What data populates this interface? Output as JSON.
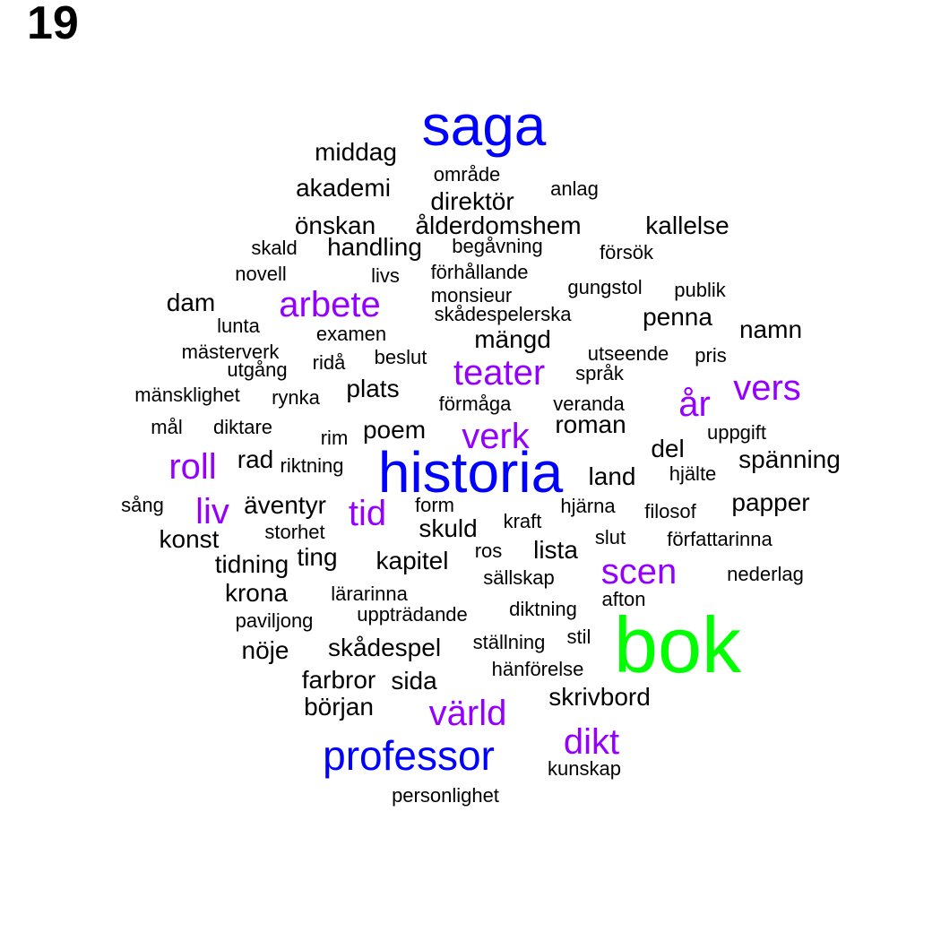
{
  "panel_label": "19",
  "palette": {
    "black": "#000000",
    "purple": "#9400ff",
    "blue": "#0000ff",
    "green": "#00ff00"
  },
  "words": [
    {
      "text": "saga",
      "color": "blue",
      "size_level": 4
    },
    {
      "text": "middag",
      "color": "black",
      "size_level": 1
    },
    {
      "text": "område",
      "color": "black",
      "size_level": 0
    },
    {
      "text": "akademi",
      "color": "black",
      "size_level": 1
    },
    {
      "text": "anlag",
      "color": "black",
      "size_level": 0
    },
    {
      "text": "direktör",
      "color": "black",
      "size_level": 1
    },
    {
      "text": "önskan",
      "color": "black",
      "size_level": 1
    },
    {
      "text": "ålderdomshem",
      "color": "black",
      "size_level": 1
    },
    {
      "text": "kallelse",
      "color": "black",
      "size_level": 1
    },
    {
      "text": "skald",
      "color": "black",
      "size_level": 0
    },
    {
      "text": "handling",
      "color": "black",
      "size_level": 1
    },
    {
      "text": "begåvning",
      "color": "black",
      "size_level": 0
    },
    {
      "text": "försök",
      "color": "black",
      "size_level": 0
    },
    {
      "text": "novell",
      "color": "black",
      "size_level": 0
    },
    {
      "text": "livs",
      "color": "black",
      "size_level": 0
    },
    {
      "text": "förhållande",
      "color": "black",
      "size_level": 0
    },
    {
      "text": "gungstol",
      "color": "black",
      "size_level": 0
    },
    {
      "text": "publik",
      "color": "black",
      "size_level": 0
    },
    {
      "text": "dam",
      "color": "black",
      "size_level": 1
    },
    {
      "text": "arbete",
      "color": "purple",
      "size_level": 2
    },
    {
      "text": "monsieur",
      "color": "black",
      "size_level": 0
    },
    {
      "text": "skådespelerska",
      "color": "black",
      "size_level": 0
    },
    {
      "text": "penna",
      "color": "black",
      "size_level": 1
    },
    {
      "text": "lunta",
      "color": "black",
      "size_level": 0
    },
    {
      "text": "namn",
      "color": "black",
      "size_level": 1
    },
    {
      "text": "examen",
      "color": "black",
      "size_level": 0
    },
    {
      "text": "mängd",
      "color": "black",
      "size_level": 1
    },
    {
      "text": "mästerverk",
      "color": "black",
      "size_level": 0
    },
    {
      "text": "beslut",
      "color": "black",
      "size_level": 0
    },
    {
      "text": "utseende",
      "color": "black",
      "size_level": 0
    },
    {
      "text": "pris",
      "color": "black",
      "size_level": 0
    },
    {
      "text": "utgång",
      "color": "black",
      "size_level": 0
    },
    {
      "text": "ridå",
      "color": "black",
      "size_level": 0
    },
    {
      "text": "teater",
      "color": "purple",
      "size_level": 2
    },
    {
      "text": "språk",
      "color": "black",
      "size_level": 0
    },
    {
      "text": "vers",
      "color": "purple",
      "size_level": 2
    },
    {
      "text": "mänsklighet",
      "color": "black",
      "size_level": 0
    },
    {
      "text": "rynka",
      "color": "black",
      "size_level": 0
    },
    {
      "text": "plats",
      "color": "black",
      "size_level": 1
    },
    {
      "text": "år",
      "color": "purple",
      "size_level": 2
    },
    {
      "text": "förmåga",
      "color": "black",
      "size_level": 0
    },
    {
      "text": "veranda",
      "color": "black",
      "size_level": 0
    },
    {
      "text": "mål",
      "color": "black",
      "size_level": 0
    },
    {
      "text": "diktare",
      "color": "black",
      "size_level": 0
    },
    {
      "text": "roman",
      "color": "black",
      "size_level": 1
    },
    {
      "text": "rim",
      "color": "black",
      "size_level": 0
    },
    {
      "text": "poem",
      "color": "black",
      "size_level": 1
    },
    {
      "text": "verk",
      "color": "purple",
      "size_level": 2
    },
    {
      "text": "uppgift",
      "color": "black",
      "size_level": 0
    },
    {
      "text": "del",
      "color": "black",
      "size_level": 1
    },
    {
      "text": "roll",
      "color": "purple",
      "size_level": 2
    },
    {
      "text": "rad",
      "color": "black",
      "size_level": 1
    },
    {
      "text": "riktning",
      "color": "black",
      "size_level": 0
    },
    {
      "text": "historia",
      "color": "blue",
      "size_level": 4
    },
    {
      "text": "spänning",
      "color": "black",
      "size_level": 1
    },
    {
      "text": "land",
      "color": "black",
      "size_level": 1
    },
    {
      "text": "hjälte",
      "color": "black",
      "size_level": 0
    },
    {
      "text": "sång",
      "color": "black",
      "size_level": 0
    },
    {
      "text": "äventyr",
      "color": "black",
      "size_level": 1
    },
    {
      "text": "liv",
      "color": "purple",
      "size_level": 2
    },
    {
      "text": "tid",
      "color": "purple",
      "size_level": 2
    },
    {
      "text": "form",
      "color": "black",
      "size_level": 0
    },
    {
      "text": "hjärna",
      "color": "black",
      "size_level": 0
    },
    {
      "text": "filosof",
      "color": "black",
      "size_level": 0
    },
    {
      "text": "papper",
      "color": "black",
      "size_level": 1
    },
    {
      "text": "storhet",
      "color": "black",
      "size_level": 0
    },
    {
      "text": "skuld",
      "color": "black",
      "size_level": 1
    },
    {
      "text": "kraft",
      "color": "black",
      "size_level": 0
    },
    {
      "text": "konst",
      "color": "black",
      "size_level": 1
    },
    {
      "text": "slut",
      "color": "black",
      "size_level": 0
    },
    {
      "text": "författarinna",
      "color": "black",
      "size_level": 0
    },
    {
      "text": "ting",
      "color": "black",
      "size_level": 1
    },
    {
      "text": "ros",
      "color": "black",
      "size_level": 0
    },
    {
      "text": "lista",
      "color": "black",
      "size_level": 1
    },
    {
      "text": "tidning",
      "color": "black",
      "size_level": 1
    },
    {
      "text": "kapitel",
      "color": "black",
      "size_level": 1
    },
    {
      "text": "scen",
      "color": "purple",
      "size_level": 2
    },
    {
      "text": "sällskap",
      "color": "black",
      "size_level": 0
    },
    {
      "text": "nederlag",
      "color": "black",
      "size_level": 0
    },
    {
      "text": "krona",
      "color": "black",
      "size_level": 1
    },
    {
      "text": "lärarinna",
      "color": "black",
      "size_level": 0
    },
    {
      "text": "afton",
      "color": "black",
      "size_level": 0
    },
    {
      "text": "diktning",
      "color": "black",
      "size_level": 0
    },
    {
      "text": "uppträdande",
      "color": "black",
      "size_level": 0
    },
    {
      "text": "paviljong",
      "color": "black",
      "size_level": 0
    },
    {
      "text": "bok",
      "color": "green",
      "size_level": 5
    },
    {
      "text": "stil",
      "color": "black",
      "size_level": 0
    },
    {
      "text": "ställning",
      "color": "black",
      "size_level": 0
    },
    {
      "text": "nöje",
      "color": "black",
      "size_level": 1
    },
    {
      "text": "skådespel",
      "color": "black",
      "size_level": 1
    },
    {
      "text": "hänförelse",
      "color": "black",
      "size_level": 0
    },
    {
      "text": "farbror",
      "color": "black",
      "size_level": 1
    },
    {
      "text": "sida",
      "color": "black",
      "size_level": 1
    },
    {
      "text": "skrivbord",
      "color": "black",
      "size_level": 1
    },
    {
      "text": "början",
      "color": "black",
      "size_level": 1
    },
    {
      "text": "värld",
      "color": "purple",
      "size_level": 2
    },
    {
      "text": "dikt",
      "color": "purple",
      "size_level": 2
    },
    {
      "text": "professor",
      "color": "blue",
      "size_level": 3
    },
    {
      "text": "kunskap",
      "color": "black",
      "size_level": 0
    },
    {
      "text": "personlighet",
      "color": "black",
      "size_level": 0
    }
  ]
}
